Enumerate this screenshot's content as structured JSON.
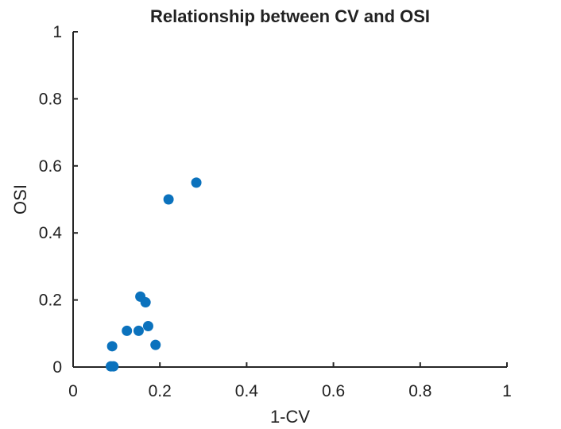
{
  "chart_data": {
    "type": "scatter",
    "title": "Relationship between CV and OSI",
    "xlabel": "1-CV",
    "ylabel": "OSI",
    "xlim": [
      0,
      1
    ],
    "ylim": [
      0,
      1
    ],
    "xticks": [
      "0",
      "0.2",
      "0.4",
      "0.6",
      "0.8",
      "1"
    ],
    "yticks": [
      "0",
      "0.2",
      "0.4",
      "0.6",
      "0.8",
      "1"
    ],
    "grid": false,
    "colors": {
      "marker": "#0b72bd",
      "axis": "#262626"
    },
    "series": [
      {
        "x": [
          0.284,
          0.22,
          0.155,
          0.167,
          0.124,
          0.151,
          0.173,
          0.09,
          0.19,
          0.087,
          0.093
        ],
        "y": [
          0.55,
          0.5,
          0.21,
          0.193,
          0.108,
          0.108,
          0.122,
          0.062,
          0.066,
          0.002,
          0.002
        ]
      }
    ]
  }
}
